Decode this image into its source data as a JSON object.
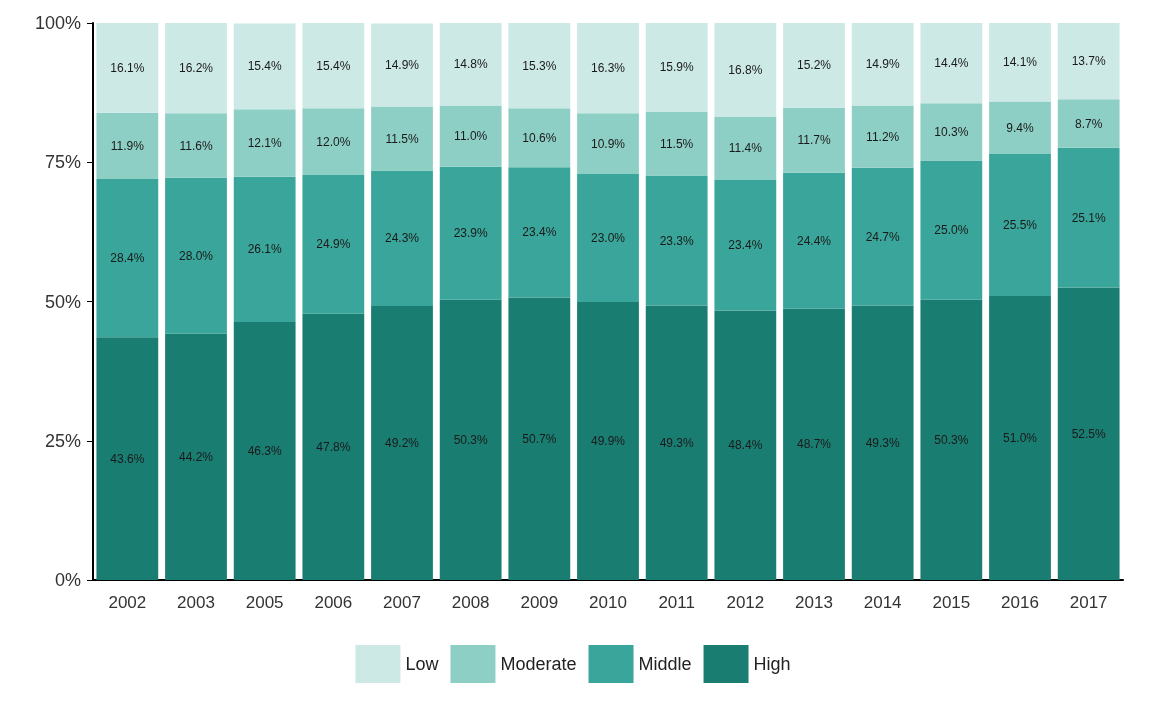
{
  "chart_data": {
    "type": "bar",
    "stacked": true,
    "categories": [
      "2002",
      "2003",
      "2005",
      "2006",
      "2007",
      "2008",
      "2009",
      "2010",
      "2011",
      "2012",
      "2013",
      "2014",
      "2015",
      "2016",
      "2017"
    ],
    "series": [
      {
        "name": "High",
        "color": "#1a7d72",
        "values": [
          43.6,
          44.2,
          46.3,
          47.8,
          49.2,
          50.3,
          50.7,
          49.9,
          49.3,
          48.4,
          48.7,
          49.3,
          50.3,
          51.0,
          52.5
        ],
        "value_labels": [
          "43.6%",
          "44.2%",
          "46.3%",
          "47.8%",
          "49.2%",
          "50.3%",
          "50.7%",
          "49.9%",
          "49.3%",
          "48.4%",
          "48.7%",
          "49.3%",
          "50.3%",
          "51.0%",
          "52.5%"
        ]
      },
      {
        "name": "Middle",
        "color": "#3aa59a",
        "values": [
          28.4,
          28.0,
          26.1,
          24.9,
          24.3,
          23.9,
          23.4,
          23.0,
          23.3,
          23.4,
          24.4,
          24.7,
          25.0,
          25.5,
          25.1
        ],
        "value_labels": [
          "28.4%",
          "28.0%",
          "26.1%",
          "24.9%",
          "24.3%",
          "23.9%",
          "23.4%",
          "23.0%",
          "23.3%",
          "23.4%",
          "24.4%",
          "24.7%",
          "25.0%",
          "25.5%",
          "25.1%"
        ]
      },
      {
        "name": "Moderate",
        "color": "#8ecfc5",
        "values": [
          11.9,
          11.6,
          12.1,
          12.0,
          11.5,
          11.0,
          10.6,
          10.9,
          11.5,
          11.4,
          11.7,
          11.2,
          10.3,
          9.4,
          8.7
        ],
        "value_labels": [
          "11.9%",
          "11.6%",
          "12.1%",
          "12.0%",
          "11.5%",
          "11.0%",
          "10.6%",
          "10.9%",
          "11.5%",
          "11.4%",
          "11.7%",
          "11.2%",
          "10.3%",
          "9.4%",
          "8.7%"
        ]
      },
      {
        "name": "Low",
        "color": "#cce9e5",
        "values": [
          16.1,
          16.2,
          15.4,
          15.4,
          14.9,
          14.8,
          15.3,
          16.3,
          15.9,
          16.8,
          15.2,
          14.9,
          14.4,
          14.1,
          13.7
        ],
        "value_labels": [
          "16.1%",
          "16.2%",
          "15.4%",
          "15.4%",
          "14.9%",
          "14.8%",
          "15.3%",
          "16.3%",
          "15.9%",
          "16.8%",
          "15.2%",
          "14.9%",
          "14.4%",
          "14.1%",
          "13.7%"
        ]
      }
    ],
    "ylim": [
      0,
      100
    ],
    "yticks": [
      {
        "value": 0,
        "label": "0%"
      },
      {
        "value": 25,
        "label": "25%"
      },
      {
        "value": 50,
        "label": "50%"
      },
      {
        "value": 75,
        "label": "75%"
      },
      {
        "value": 100,
        "label": "100%"
      }
    ],
    "grid": false,
    "legend": "bottom"
  }
}
